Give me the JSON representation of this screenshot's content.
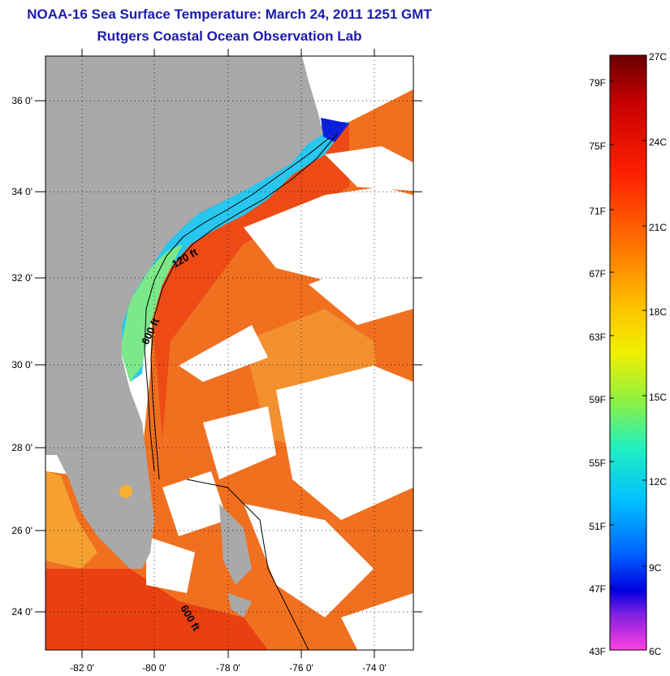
{
  "header": {
    "title": "NOAA-16 Sea Surface Temperature:  March 24, 2011 1251 GMT",
    "subtitle": "Rutgers Coastal Ocean Observation Lab"
  },
  "map": {
    "lat_ticks": [
      "24 0'",
      "26 0'",
      "28 0'",
      "30 0'",
      "32 0'",
      "34 0'",
      "36 0'"
    ],
    "lon_ticks": [
      "-82 0'",
      "-80 0'",
      "-78 0'",
      "-76 0'",
      "-74 0'"
    ],
    "contour_labels": [
      "120 ft",
      "600 ft",
      "600 ft"
    ],
    "colors": {
      "land": "#a9a9a9",
      "cloud": "#ffffff",
      "warm_water": "#ee6a1c",
      "cold_water": "#16b8f0"
    }
  },
  "colorbar": {
    "fahrenheit_labels": [
      "79F",
      "75F",
      "71F",
      "67F",
      "63F",
      "59F",
      "55F",
      "51F",
      "47F",
      "43F"
    ],
    "celsius_labels": [
      "27C",
      "24C",
      "21C",
      "18C",
      "15C",
      "12C",
      "9C",
      "6C"
    ],
    "range_celsius": [
      6,
      27
    ]
  }
}
